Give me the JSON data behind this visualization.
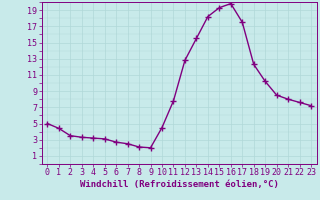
{
  "x": [
    0,
    1,
    2,
    3,
    4,
    5,
    6,
    7,
    8,
    9,
    10,
    11,
    12,
    13,
    14,
    15,
    16,
    17,
    18,
    19,
    20,
    21,
    22,
    23
  ],
  "y": [
    5.0,
    4.4,
    3.5,
    3.3,
    3.2,
    3.1,
    2.7,
    2.5,
    2.1,
    2.0,
    4.5,
    7.8,
    12.8,
    15.5,
    18.2,
    19.3,
    19.8,
    17.5,
    12.3,
    10.2,
    8.5,
    8.0,
    7.6,
    7.2
  ],
  "line_color": "#800080",
  "marker": "+",
  "marker_size": 4,
  "marker_lw": 1.0,
  "xlabel": "Windchill (Refroidissement éolien,°C)",
  "xlabel_fontsize": 6.5,
  "xlim": [
    -0.5,
    23.5
  ],
  "ylim": [
    0,
    20
  ],
  "yticks": [
    1,
    3,
    5,
    7,
    9,
    11,
    13,
    15,
    17,
    19
  ],
  "xticks": [
    0,
    1,
    2,
    3,
    4,
    5,
    6,
    7,
    8,
    9,
    10,
    11,
    12,
    13,
    14,
    15,
    16,
    17,
    18,
    19,
    20,
    21,
    22,
    23
  ],
  "background_color": "#c8eaea",
  "grid_color": "#b0d8d8",
  "tick_color": "#800080",
  "tick_fontsize": 6,
  "line_width": 1.0,
  "figure_width": 3.2,
  "figure_height": 2.0,
  "dpi": 100
}
